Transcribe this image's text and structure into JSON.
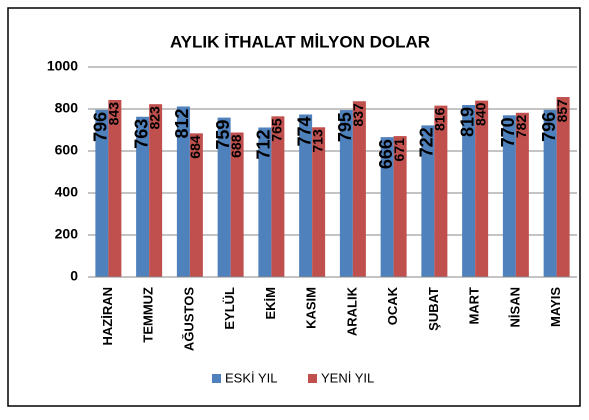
{
  "chart_data": {
    "type": "bar",
    "title": "AYLIK İTHALAT MİLYON DOLAR",
    "categories": [
      "HAZİRAN",
      "TEMMUZ",
      "AĞUSTOS",
      "EYLÜL",
      "EKİM",
      "KASIM",
      "ARALIK",
      "OCAK",
      "ŞUBAT",
      "MART",
      "NİSAN",
      "MAYIS"
    ],
    "series": [
      {
        "name": "ESKİ YIL",
        "color": "#4f81bd",
        "values": [
          796,
          763,
          812,
          759,
          712,
          774,
          795,
          666,
          722,
          819,
          770,
          796
        ]
      },
      {
        "name": "YENİ YIL",
        "color": "#c0504d",
        "values": [
          843,
          823,
          684,
          688,
          765,
          713,
          837,
          671,
          816,
          840,
          782,
          857
        ]
      }
    ],
    "ylim": [
      0,
      1000
    ],
    "yticks": [
      0,
      200,
      400,
      600,
      800,
      1000
    ],
    "grid": true,
    "legend": "bottom"
  }
}
